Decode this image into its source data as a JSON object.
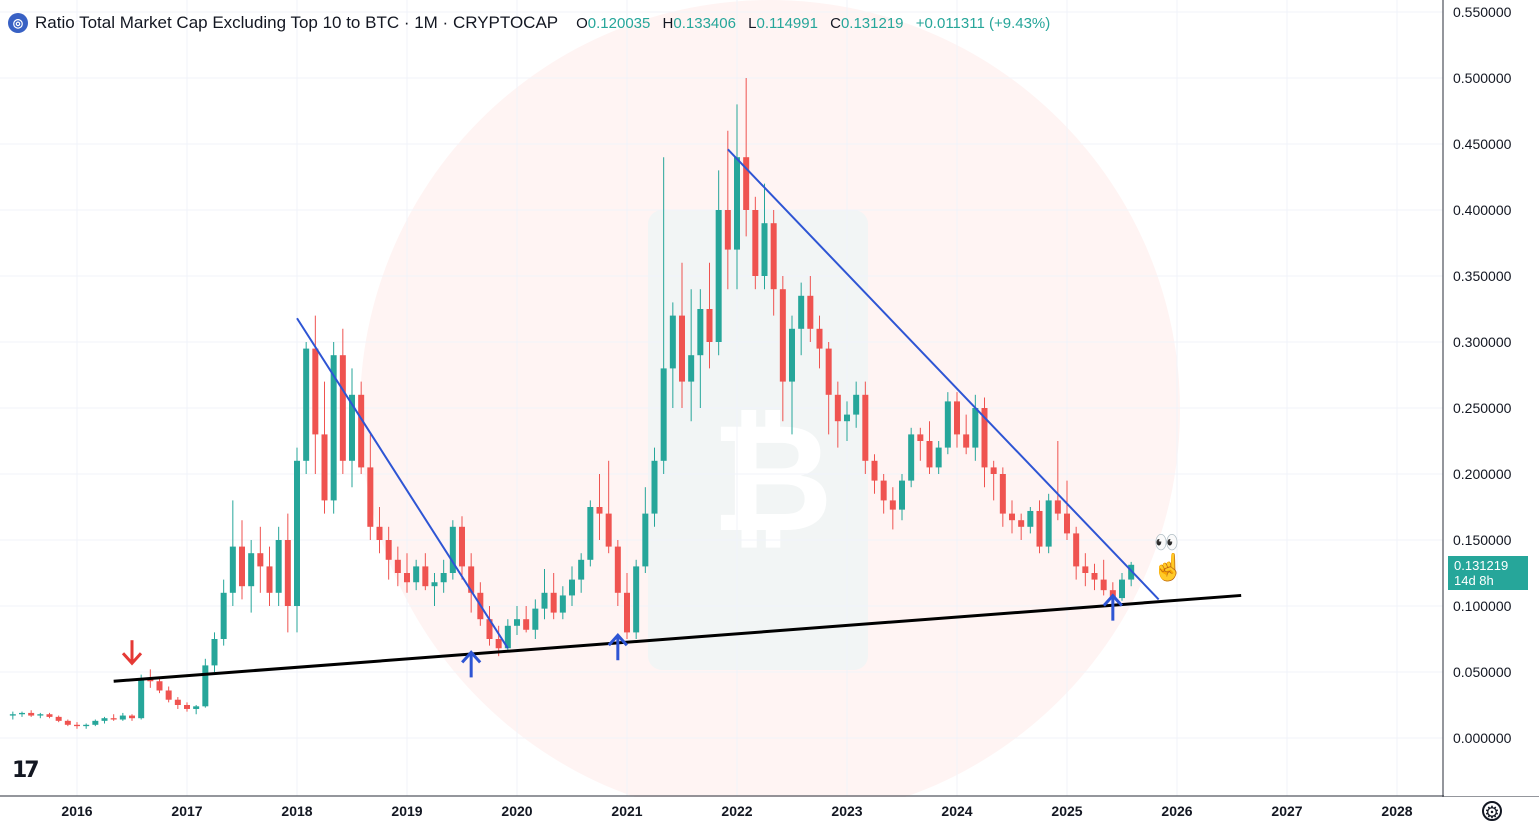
{
  "header": {
    "title": "Ratio Total Market Cap Excluding Top 10 to BTC · 1M · CRYPTOCAP",
    "open_label": "O",
    "open": "0.120035",
    "high_label": "H",
    "high": "0.133406",
    "low_label": "L",
    "low": "0.114991",
    "close_label": "C",
    "close": "0.131219",
    "change": "+0.011311 (+9.43%)"
  },
  "price_tag": {
    "price": "0.131219",
    "countdown": "14d 8h"
  },
  "logo": "17",
  "colors": {
    "up": "#26a69a",
    "down": "#ef5350",
    "trendline": "#2e55d4",
    "support": "#000000",
    "arrow_up": "#2e55d4",
    "arrow_down": "#e53935"
  },
  "chart_data": {
    "type": "candlestick",
    "interval": "1M",
    "x_ticks": [
      "2016",
      "2017",
      "2018",
      "2019",
      "2020",
      "2021",
      "2022",
      "2023",
      "2024",
      "2025",
      "2026",
      "2027",
      "2028"
    ],
    "y_ticks": [
      "0.550000",
      "0.500000",
      "0.450000",
      "0.400000",
      "0.350000",
      "0.300000",
      "0.250000",
      "0.200000",
      "0.150000",
      "0.100000",
      "0.050000",
      "0.000000"
    ],
    "ylim": [
      -0.03,
      0.555
    ],
    "xlim": [
      "2015-07",
      "2028-10"
    ],
    "candles": [
      [
        "2015-06",
        0.017,
        0.02,
        0.014,
        0.018
      ],
      [
        "2015-07",
        0.018,
        0.02,
        0.016,
        0.019
      ],
      [
        "2015-08",
        0.019,
        0.021,
        0.016,
        0.017
      ],
      [
        "2015-09",
        0.017,
        0.019,
        0.015,
        0.018
      ],
      [
        "2015-10",
        0.018,
        0.019,
        0.015,
        0.016
      ],
      [
        "2015-11",
        0.016,
        0.017,
        0.012,
        0.013
      ],
      [
        "2015-12",
        0.013,
        0.014,
        0.009,
        0.01
      ],
      [
        "2016-01",
        0.01,
        0.012,
        0.007,
        0.009
      ],
      [
        "2016-02",
        0.009,
        0.011,
        0.007,
        0.01
      ],
      [
        "2016-03",
        0.01,
        0.014,
        0.009,
        0.013
      ],
      [
        "2016-04",
        0.013,
        0.016,
        0.011,
        0.015
      ],
      [
        "2016-05",
        0.015,
        0.018,
        0.013,
        0.014
      ],
      [
        "2016-06",
        0.014,
        0.019,
        0.013,
        0.017
      ],
      [
        "2016-07",
        0.017,
        0.018,
        0.013,
        0.015
      ],
      [
        "2016-08",
        0.015,
        0.048,
        0.014,
        0.045
      ],
      [
        "2016-09",
        0.045,
        0.052,
        0.038,
        0.043
      ],
      [
        "2016-10",
        0.043,
        0.045,
        0.034,
        0.036
      ],
      [
        "2016-11",
        0.036,
        0.039,
        0.027,
        0.029
      ],
      [
        "2016-12",
        0.029,
        0.031,
        0.022,
        0.025
      ],
      [
        "2017-01",
        0.025,
        0.027,
        0.02,
        0.022
      ],
      [
        "2017-02",
        0.022,
        0.025,
        0.018,
        0.024
      ],
      [
        "2017-03",
        0.024,
        0.06,
        0.023,
        0.055
      ],
      [
        "2017-04",
        0.055,
        0.08,
        0.05,
        0.075
      ],
      [
        "2017-05",
        0.075,
        0.12,
        0.07,
        0.11
      ],
      [
        "2017-06",
        0.11,
        0.18,
        0.1,
        0.145
      ],
      [
        "2017-07",
        0.145,
        0.165,
        0.105,
        0.115
      ],
      [
        "2017-08",
        0.115,
        0.15,
        0.095,
        0.14
      ],
      [
        "2017-09",
        0.14,
        0.16,
        0.11,
        0.13
      ],
      [
        "2017-10",
        0.13,
        0.145,
        0.1,
        0.11
      ],
      [
        "2017-11",
        0.11,
        0.16,
        0.1,
        0.15
      ],
      [
        "2017-12",
        0.15,
        0.17,
        0.08,
        0.1
      ],
      [
        "2018-01",
        0.1,
        0.22,
        0.08,
        0.21
      ],
      [
        "2018-02",
        0.21,
        0.3,
        0.2,
        0.295
      ],
      [
        "2018-03",
        0.295,
        0.32,
        0.2,
        0.23
      ],
      [
        "2018-04",
        0.23,
        0.27,
        0.17,
        0.18
      ],
      [
        "2018-05",
        0.18,
        0.3,
        0.17,
        0.29
      ],
      [
        "2018-06",
        0.29,
        0.31,
        0.2,
        0.21
      ],
      [
        "2018-07",
        0.21,
        0.28,
        0.19,
        0.26
      ],
      [
        "2018-08",
        0.26,
        0.27,
        0.2,
        0.205
      ],
      [
        "2018-09",
        0.205,
        0.23,
        0.15,
        0.16
      ],
      [
        "2018-10",
        0.16,
        0.175,
        0.14,
        0.15
      ],
      [
        "2018-11",
        0.15,
        0.16,
        0.12,
        0.135
      ],
      [
        "2018-12",
        0.135,
        0.145,
        0.115,
        0.125
      ],
      [
        "2019-01",
        0.125,
        0.14,
        0.11,
        0.118
      ],
      [
        "2019-02",
        0.118,
        0.135,
        0.112,
        0.13
      ],
      [
        "2019-03",
        0.13,
        0.14,
        0.112,
        0.115
      ],
      [
        "2019-04",
        0.115,
        0.125,
        0.1,
        0.118
      ],
      [
        "2019-05",
        0.118,
        0.135,
        0.11,
        0.125
      ],
      [
        "2019-06",
        0.125,
        0.165,
        0.12,
        0.16
      ],
      [
        "2019-07",
        0.16,
        0.168,
        0.12,
        0.13
      ],
      [
        "2019-08",
        0.13,
        0.14,
        0.095,
        0.11
      ],
      [
        "2019-09",
        0.11,
        0.118,
        0.085,
        0.09
      ],
      [
        "2019-10",
        0.09,
        0.1,
        0.07,
        0.075
      ],
      [
        "2019-11",
        0.075,
        0.085,
        0.062,
        0.068
      ],
      [
        "2019-12",
        0.068,
        0.09,
        0.065,
        0.085
      ],
      [
        "2020-01",
        0.085,
        0.1,
        0.078,
        0.09
      ],
      [
        "2020-02",
        0.09,
        0.1,
        0.08,
        0.082
      ],
      [
        "2020-03",
        0.082,
        0.105,
        0.075,
        0.098
      ],
      [
        "2020-04",
        0.098,
        0.128,
        0.09,
        0.11
      ],
      [
        "2020-05",
        0.11,
        0.125,
        0.09,
        0.095
      ],
      [
        "2020-06",
        0.095,
        0.115,
        0.09,
        0.108
      ],
      [
        "2020-07",
        0.108,
        0.13,
        0.1,
        0.12
      ],
      [
        "2020-08",
        0.12,
        0.14,
        0.11,
        0.135
      ],
      [
        "2020-09",
        0.135,
        0.18,
        0.13,
        0.175
      ],
      [
        "2020-10",
        0.175,
        0.2,
        0.15,
        0.17
      ],
      [
        "2020-11",
        0.17,
        0.21,
        0.14,
        0.145
      ],
      [
        "2020-12",
        0.145,
        0.15,
        0.1,
        0.11
      ],
      [
        "2021-01",
        0.11,
        0.125,
        0.075,
        0.08
      ],
      [
        "2021-02",
        0.08,
        0.135,
        0.075,
        0.13
      ],
      [
        "2021-03",
        0.13,
        0.19,
        0.125,
        0.17
      ],
      [
        "2021-04",
        0.17,
        0.22,
        0.16,
        0.21
      ],
      [
        "2021-05",
        0.21,
        0.44,
        0.2,
        0.28
      ],
      [
        "2021-06",
        0.28,
        0.33,
        0.25,
        0.32
      ],
      [
        "2021-07",
        0.32,
        0.36,
        0.25,
        0.27
      ],
      [
        "2021-08",
        0.27,
        0.34,
        0.24,
        0.29
      ],
      [
        "2021-09",
        0.29,
        0.34,
        0.25,
        0.325
      ],
      [
        "2021-10",
        0.325,
        0.36,
        0.28,
        0.3
      ],
      [
        "2021-11",
        0.3,
        0.43,
        0.29,
        0.4
      ],
      [
        "2021-12",
        0.4,
        0.46,
        0.34,
        0.37
      ],
      [
        "2022-01",
        0.37,
        0.48,
        0.34,
        0.44
      ],
      [
        "2022-02",
        0.44,
        0.5,
        0.38,
        0.4
      ],
      [
        "2022-03",
        0.4,
        0.41,
        0.34,
        0.35
      ],
      [
        "2022-04",
        0.35,
        0.42,
        0.34,
        0.39
      ],
      [
        "2022-05",
        0.39,
        0.4,
        0.32,
        0.34
      ],
      [
        "2022-06",
        0.34,
        0.35,
        0.24,
        0.27
      ],
      [
        "2022-07",
        0.27,
        0.32,
        0.23,
        0.31
      ],
      [
        "2022-08",
        0.31,
        0.345,
        0.29,
        0.335
      ],
      [
        "2022-09",
        0.335,
        0.35,
        0.3,
        0.31
      ],
      [
        "2022-10",
        0.31,
        0.32,
        0.28,
        0.295
      ],
      [
        "2022-11",
        0.295,
        0.3,
        0.23,
        0.26
      ],
      [
        "2022-12",
        0.26,
        0.27,
        0.22,
        0.24
      ],
      [
        "2023-01",
        0.24,
        0.255,
        0.225,
        0.245
      ],
      [
        "2023-02",
        0.245,
        0.27,
        0.235,
        0.26
      ],
      [
        "2023-03",
        0.26,
        0.27,
        0.2,
        0.21
      ],
      [
        "2023-04",
        0.21,
        0.215,
        0.185,
        0.195
      ],
      [
        "2023-05",
        0.195,
        0.2,
        0.17,
        0.18
      ],
      [
        "2023-06",
        0.18,
        0.19,
        0.158,
        0.173
      ],
      [
        "2023-07",
        0.173,
        0.2,
        0.165,
        0.195
      ],
      [
        "2023-08",
        0.195,
        0.235,
        0.19,
        0.23
      ],
      [
        "2023-09",
        0.23,
        0.235,
        0.21,
        0.225
      ],
      [
        "2023-10",
        0.225,
        0.24,
        0.2,
        0.205
      ],
      [
        "2023-11",
        0.205,
        0.225,
        0.2,
        0.22
      ],
      [
        "2023-12",
        0.22,
        0.262,
        0.215,
        0.255
      ],
      [
        "2024-01",
        0.255,
        0.262,
        0.22,
        0.23
      ],
      [
        "2024-02",
        0.23,
        0.245,
        0.215,
        0.22
      ],
      [
        "2024-03",
        0.22,
        0.26,
        0.21,
        0.25
      ],
      [
        "2024-04",
        0.25,
        0.258,
        0.19,
        0.205
      ],
      [
        "2024-05",
        0.205,
        0.21,
        0.18,
        0.2
      ],
      [
        "2024-06",
        0.2,
        0.205,
        0.16,
        0.17
      ],
      [
        "2024-07",
        0.17,
        0.18,
        0.155,
        0.165
      ],
      [
        "2024-08",
        0.165,
        0.17,
        0.15,
        0.16
      ],
      [
        "2024-09",
        0.16,
        0.175,
        0.155,
        0.172
      ],
      [
        "2024-10",
        0.172,
        0.18,
        0.14,
        0.145
      ],
      [
        "2024-11",
        0.145,
        0.185,
        0.14,
        0.18
      ],
      [
        "2024-12",
        0.18,
        0.225,
        0.165,
        0.17
      ],
      [
        "2025-01",
        0.17,
        0.195,
        0.15,
        0.155
      ],
      [
        "2025-02",
        0.155,
        0.16,
        0.12,
        0.13
      ],
      [
        "2025-03",
        0.13,
        0.14,
        0.115,
        0.125
      ],
      [
        "2025-04",
        0.125,
        0.132,
        0.112,
        0.12
      ],
      [
        "2025-05",
        0.12,
        0.135,
        0.108,
        0.112
      ],
      [
        "2025-06",
        0.112,
        0.118,
        0.1,
        0.106
      ],
      [
        "2025-07",
        0.106,
        0.125,
        0.104,
        0.12
      ],
      [
        "2025-08",
        0.120035,
        0.133406,
        0.114991,
        0.131219
      ]
    ],
    "annotations": {
      "support_line": [
        [
          "2016-05",
          0.043
        ],
        [
          "2026-08",
          0.108
        ]
      ],
      "trendlines": [
        [
          [
            "2018-01",
            0.318
          ],
          [
            "2019-12",
            0.068
          ]
        ],
        [
          [
            "2021-12",
            0.446
          ],
          [
            "2025-11",
            0.105
          ]
        ]
      ],
      "up_arrows": [
        [
          "2019-08",
          0.055
        ],
        [
          "2020-12",
          0.068
        ],
        [
          "2025-06",
          0.098
        ]
      ],
      "down_arrows": [
        [
          "2016-07",
          0.065
        ]
      ]
    }
  }
}
